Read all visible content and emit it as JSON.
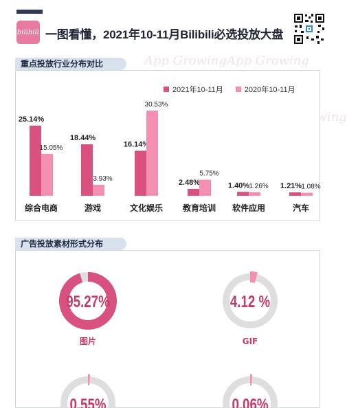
{
  "header": {
    "logo_text": "bilibili",
    "title": "一图看懂，2021年10-11月Bilibili必选投放大盘"
  },
  "watermark_text": "App Growing",
  "section1": {
    "heading": "重点投放行业分布对比"
  },
  "section2": {
    "heading": "广告投放素材形式分布"
  },
  "chart_data": [
    {
      "type": "bar",
      "title": "重点投放行业分布对比",
      "categories": [
        "综合电商",
        "游戏",
        "文化娱乐",
        "教育培训",
        "软件应用",
        "汽车"
      ],
      "series": [
        {
          "name": "2021年10-11月",
          "values": [
            25.14,
            18.44,
            16.14,
            2.48,
            1.4,
            1.21
          ],
          "labels": [
            "25.14%",
            "18.44%",
            "16.14%",
            "2.48%",
            "1.40%",
            "1.21%"
          ],
          "color": "#d9527f"
        },
        {
          "name": "2020年10-11月",
          "values": [
            15.05,
            3.93,
            30.53,
            5.75,
            1.26,
            1.08
          ],
          "labels": [
            "15.05%",
            "3.93%",
            "30.53%",
            "5.75%",
            "1.26%",
            "1.08%"
          ],
          "color": "#f48fb1"
        }
      ],
      "ylim": [
        0,
        32
      ],
      "legend": "top-right"
    },
    {
      "type": "pie",
      "title": "广告投放素材形式分布",
      "slices": [
        {
          "label": "图片",
          "value": 95.27,
          "value_label": "95.27%"
        },
        {
          "label": "GIF",
          "value": 4.12,
          "value_label": "4.12 %"
        },
        {
          "label": "",
          "value": 0.55,
          "value_label": "0.55%"
        },
        {
          "label": "",
          "value": 0.06,
          "value_label": "0.06%"
        }
      ],
      "colors": {
        "fill": "#d9527f",
        "fill_light": "#f48fb1",
        "track": "#dedede",
        "text": "#c43a6a"
      }
    }
  ]
}
